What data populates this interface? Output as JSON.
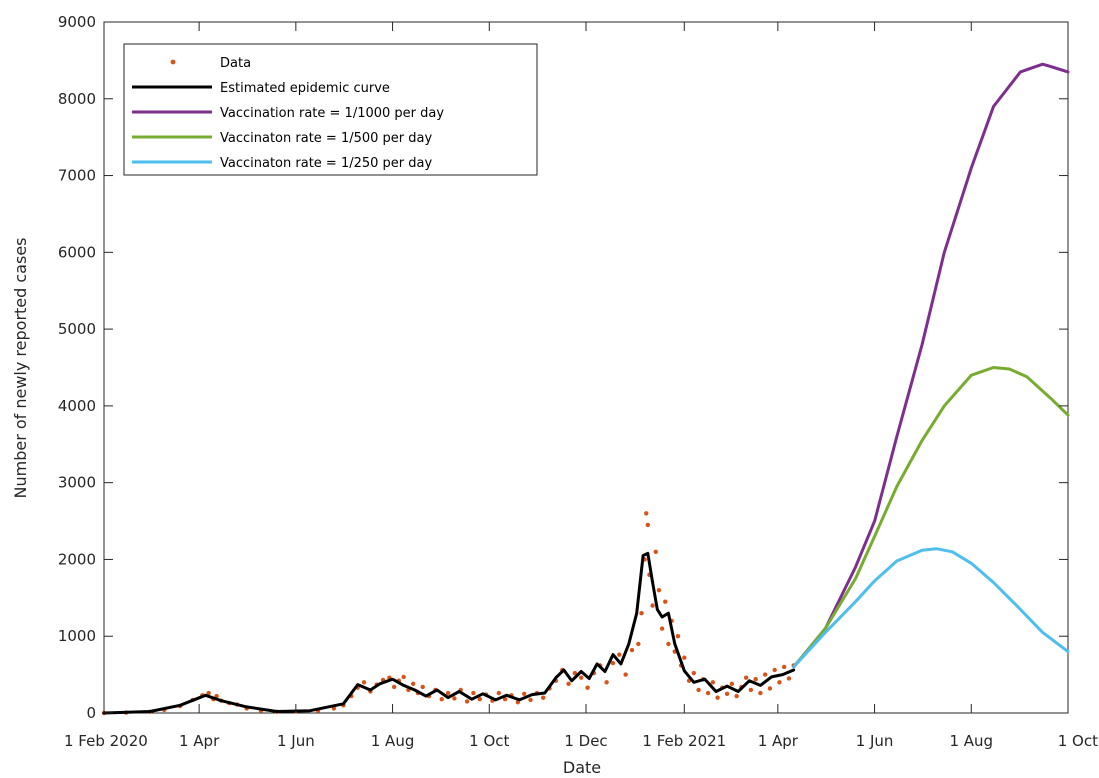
{
  "chart_data": {
    "type": "line",
    "xlabel": "Date",
    "ylabel": "Number of newly reported cases",
    "xlim": [
      "2020-02-01",
      "2021-10-01"
    ],
    "ylim": [
      0,
      9000
    ],
    "yticks": [
      0,
      1000,
      2000,
      3000,
      4000,
      5000,
      6000,
      7000,
      8000,
      9000
    ],
    "xticks": [
      {
        "date": "2020-02-01",
        "label": "1 Feb 2020"
      },
      {
        "date": "2020-04-01",
        "label": "1 Apr"
      },
      {
        "date": "2020-06-01",
        "label": "1 Jun"
      },
      {
        "date": "2020-08-01",
        "label": "1 Aug"
      },
      {
        "date": "2020-10-01",
        "label": "1 Oct"
      },
      {
        "date": "2020-12-01",
        "label": "1 Dec"
      },
      {
        "date": "2021-02-01",
        "label": "1 Feb 2021"
      },
      {
        "date": "2021-04-01",
        "label": "1 Apr"
      },
      {
        "date": "2021-06-01",
        "label": "1 Jun"
      },
      {
        "date": "2021-08-01",
        "label": "1 Aug"
      },
      {
        "date": "2021-10-01",
        "label": "1 Oct"
      }
    ],
    "grid": false,
    "legend_position": "top-left",
    "series": [
      {
        "name": "Data",
        "style": "dots",
        "color": "#D95319",
        "points": [
          [
            "2020-02-01",
            0
          ],
          [
            "2020-02-15",
            5
          ],
          [
            "2020-03-01",
            15
          ],
          [
            "2020-03-10",
            40
          ],
          [
            "2020-03-20",
            90
          ],
          [
            "2020-03-28",
            170
          ],
          [
            "2020-04-03",
            230
          ],
          [
            "2020-04-07",
            260
          ],
          [
            "2020-04-10",
            180
          ],
          [
            "2020-04-12",
            220
          ],
          [
            "2020-04-15",
            160
          ],
          [
            "2020-04-20",
            130
          ],
          [
            "2020-04-25",
            110
          ],
          [
            "2020-05-01",
            60
          ],
          [
            "2020-05-10",
            30
          ],
          [
            "2020-05-20",
            15
          ],
          [
            "2020-06-01",
            20
          ],
          [
            "2020-06-15",
            30
          ],
          [
            "2020-06-25",
            60
          ],
          [
            "2020-07-01",
            100
          ],
          [
            "2020-07-06",
            220
          ],
          [
            "2020-07-10",
            330
          ],
          [
            "2020-07-14",
            400
          ],
          [
            "2020-07-18",
            280
          ],
          [
            "2020-07-22",
            370
          ],
          [
            "2020-07-26",
            430
          ],
          [
            "2020-07-30",
            460
          ],
          [
            "2020-08-02",
            340
          ],
          [
            "2020-08-05",
            420
          ],
          [
            "2020-08-08",
            470
          ],
          [
            "2020-08-11",
            300
          ],
          [
            "2020-08-14",
            380
          ],
          [
            "2020-08-17",
            260
          ],
          [
            "2020-08-20",
            340
          ],
          [
            "2020-08-24",
            220
          ],
          [
            "2020-08-28",
            300
          ],
          [
            "2020-09-01",
            180
          ],
          [
            "2020-09-05",
            260
          ],
          [
            "2020-09-09",
            190
          ],
          [
            "2020-09-13",
            300
          ],
          [
            "2020-09-17",
            150
          ],
          [
            "2020-09-21",
            260
          ],
          [
            "2020-09-25",
            180
          ],
          [
            "2020-09-29",
            240
          ],
          [
            "2020-10-03",
            160
          ],
          [
            "2020-10-07",
            260
          ],
          [
            "2020-10-11",
            180
          ],
          [
            "2020-10-15",
            230
          ],
          [
            "2020-10-19",
            140
          ],
          [
            "2020-10-23",
            250
          ],
          [
            "2020-10-27",
            170
          ],
          [
            "2020-10-31",
            260
          ],
          [
            "2020-11-04",
            200
          ],
          [
            "2020-11-08",
            320
          ],
          [
            "2020-11-12",
            420
          ],
          [
            "2020-11-16",
            560
          ],
          [
            "2020-11-20",
            380
          ],
          [
            "2020-11-24",
            520
          ],
          [
            "2020-11-28",
            460
          ],
          [
            "2020-12-02",
            330
          ],
          [
            "2020-12-06",
            520
          ],
          [
            "2020-12-10",
            620
          ],
          [
            "2020-12-14",
            400
          ],
          [
            "2020-12-18",
            650
          ],
          [
            "2020-12-22",
            760
          ],
          [
            "2020-12-26",
            500
          ],
          [
            "2020-12-30",
            820
          ],
          [
            "2021-01-03",
            900
          ],
          [
            "2021-01-05",
            1300
          ],
          [
            "2021-01-07",
            2000
          ],
          [
            "2021-01-08",
            2600
          ],
          [
            "2021-01-09",
            2450
          ],
          [
            "2021-01-10",
            1800
          ],
          [
            "2021-01-12",
            1400
          ],
          [
            "2021-01-14",
            2100
          ],
          [
            "2021-01-16",
            1600
          ],
          [
            "2021-01-18",
            1100
          ],
          [
            "2021-01-20",
            1450
          ],
          [
            "2021-01-22",
            900
          ],
          [
            "2021-01-24",
            1200
          ],
          [
            "2021-01-26",
            800
          ],
          [
            "2021-01-28",
            1000
          ],
          [
            "2021-01-30",
            620
          ],
          [
            "2021-02-01",
            720
          ],
          [
            "2021-02-04",
            420
          ],
          [
            "2021-02-07",
            520
          ],
          [
            "2021-02-10",
            300
          ],
          [
            "2021-02-13",
            440
          ],
          [
            "2021-02-16",
            260
          ],
          [
            "2021-02-19",
            400
          ],
          [
            "2021-02-22",
            200
          ],
          [
            "2021-02-25",
            330
          ],
          [
            "2021-02-28",
            250
          ],
          [
            "2021-03-03",
            380
          ],
          [
            "2021-03-06",
            220
          ],
          [
            "2021-03-09",
            340
          ],
          [
            "2021-03-12",
            460
          ],
          [
            "2021-03-15",
            300
          ],
          [
            "2021-03-18",
            440
          ],
          [
            "2021-03-21",
            260
          ],
          [
            "2021-03-24",
            500
          ],
          [
            "2021-03-27",
            320
          ],
          [
            "2021-03-30",
            560
          ],
          [
            "2021-04-02",
            400
          ],
          [
            "2021-04-05",
            600
          ],
          [
            "2021-04-08",
            450
          ],
          [
            "2021-04-11",
            620
          ]
        ]
      },
      {
        "name": "Estimated epidemic curve",
        "style": "line",
        "color": "#000000",
        "points": [
          [
            "2020-02-01",
            0
          ],
          [
            "2020-03-01",
            20
          ],
          [
            "2020-03-20",
            100
          ],
          [
            "2020-04-05",
            230
          ],
          [
            "2020-04-15",
            160
          ],
          [
            "2020-05-01",
            80
          ],
          [
            "2020-05-20",
            20
          ],
          [
            "2020-06-10",
            30
          ],
          [
            "2020-07-01",
            120
          ],
          [
            "2020-07-10",
            370
          ],
          [
            "2020-07-18",
            300
          ],
          [
            "2020-07-24",
            380
          ],
          [
            "2020-08-01",
            440
          ],
          [
            "2020-08-08",
            360
          ],
          [
            "2020-08-15",
            300
          ],
          [
            "2020-08-22",
            220
          ],
          [
            "2020-08-29",
            300
          ],
          [
            "2020-09-05",
            200
          ],
          [
            "2020-09-12",
            280
          ],
          [
            "2020-09-20",
            180
          ],
          [
            "2020-09-27",
            250
          ],
          [
            "2020-10-05",
            170
          ],
          [
            "2020-10-12",
            230
          ],
          [
            "2020-10-20",
            170
          ],
          [
            "2020-10-28",
            240
          ],
          [
            "2020-11-05",
            260
          ],
          [
            "2020-11-12",
            460
          ],
          [
            "2020-11-17",
            560
          ],
          [
            "2020-11-22",
            420
          ],
          [
            "2020-11-28",
            540
          ],
          [
            "2020-12-03",
            450
          ],
          [
            "2020-12-08",
            640
          ],
          [
            "2020-12-13",
            540
          ],
          [
            "2020-12-18",
            760
          ],
          [
            "2020-12-23",
            640
          ],
          [
            "2020-12-28",
            900
          ],
          [
            "2021-01-02",
            1300
          ],
          [
            "2021-01-06",
            2050
          ],
          [
            "2021-01-09",
            2080
          ],
          [
            "2021-01-12",
            1700
          ],
          [
            "2021-01-15",
            1350
          ],
          [
            "2021-01-18",
            1250
          ],
          [
            "2021-01-22",
            1300
          ],
          [
            "2021-01-26",
            900
          ],
          [
            "2021-02-01",
            550
          ],
          [
            "2021-02-07",
            400
          ],
          [
            "2021-02-14",
            440
          ],
          [
            "2021-02-21",
            280
          ],
          [
            "2021-02-28",
            350
          ],
          [
            "2021-03-07",
            280
          ],
          [
            "2021-03-14",
            420
          ],
          [
            "2021-03-21",
            360
          ],
          [
            "2021-03-28",
            470
          ],
          [
            "2021-04-04",
            500
          ],
          [
            "2021-04-11",
            560
          ]
        ]
      },
      {
        "name": "Vaccination rate = 1/1000 per day",
        "style": "line",
        "color": "#7E2F8E",
        "points": [
          [
            "2021-04-11",
            600
          ],
          [
            "2021-05-01",
            1100
          ],
          [
            "2021-05-20",
            1900
          ],
          [
            "2021-06-01",
            2500
          ],
          [
            "2021-06-15",
            3600
          ],
          [
            "2021-07-01",
            4800
          ],
          [
            "2021-07-15",
            6000
          ],
          [
            "2021-08-01",
            7100
          ],
          [
            "2021-08-15",
            7900
          ],
          [
            "2021-09-01",
            8350
          ],
          [
            "2021-09-15",
            8450
          ],
          [
            "2021-09-20",
            8420
          ],
          [
            "2021-10-01",
            8350
          ]
        ]
      },
      {
        "name": "Vaccinaton rate = 1/500 per day",
        "style": "line",
        "color": "#77AC30",
        "points": [
          [
            "2021-04-11",
            600
          ],
          [
            "2021-05-01",
            1100
          ],
          [
            "2021-05-20",
            1750
          ],
          [
            "2021-06-01",
            2300
          ],
          [
            "2021-06-15",
            2950
          ],
          [
            "2021-07-01",
            3550
          ],
          [
            "2021-07-15",
            4000
          ],
          [
            "2021-08-01",
            4400
          ],
          [
            "2021-08-15",
            4500
          ],
          [
            "2021-08-25",
            4480
          ],
          [
            "2021-09-05",
            4380
          ],
          [
            "2021-09-20",
            4100
          ],
          [
            "2021-10-01",
            3880
          ]
        ]
      },
      {
        "name": "Vaccinaton rate = 1/250 per day",
        "style": "line",
        "color": "#4DBEEE",
        "points": [
          [
            "2021-04-11",
            600
          ],
          [
            "2021-05-01",
            1050
          ],
          [
            "2021-05-20",
            1450
          ],
          [
            "2021-06-01",
            1720
          ],
          [
            "2021-06-15",
            1980
          ],
          [
            "2021-07-01",
            2120
          ],
          [
            "2021-07-10",
            2140
          ],
          [
            "2021-07-20",
            2100
          ],
          [
            "2021-08-01",
            1950
          ],
          [
            "2021-08-15",
            1700
          ],
          [
            "2021-09-01",
            1350
          ],
          [
            "2021-09-15",
            1050
          ],
          [
            "2021-10-01",
            800
          ]
        ]
      }
    ]
  }
}
